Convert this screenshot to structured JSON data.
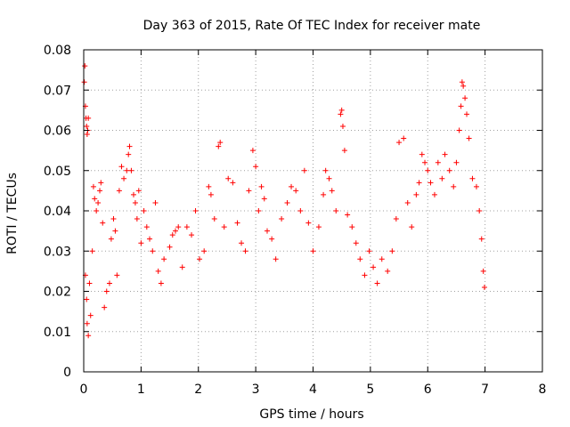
{
  "chart_data": {
    "type": "scatter",
    "title": "Day 363 of 2015, Rate Of TEC Index for receiver mate",
    "xlabel": "GPS time / hours",
    "ylabel": "ROTI / TECUs",
    "xlim": [
      0,
      8
    ],
    "ylim": [
      0,
      0.08
    ],
    "xticks": [
      0,
      1,
      2,
      3,
      4,
      5,
      6,
      7,
      8
    ],
    "xtick_labels": [
      "0",
      "1",
      "2",
      "3",
      "4",
      "5",
      "6",
      "7",
      "8"
    ],
    "yticks": [
      0,
      0.01,
      0.02,
      0.03,
      0.04,
      0.05,
      0.06,
      0.07,
      0.08
    ],
    "ytick_labels": [
      "0",
      "0.01",
      "0.02",
      "0.03",
      "0.04",
      "0.05",
      "0.06",
      "0.07",
      "0.08"
    ],
    "grid": true,
    "marker": "plus",
    "color": "#ff0000",
    "series": [
      {
        "name": "ROTI",
        "points": [
          [
            0.01,
            0.072
          ],
          [
            0.02,
            0.076
          ],
          [
            0.03,
            0.066
          ],
          [
            0.04,
            0.063
          ],
          [
            0.05,
            0.061
          ],
          [
            0.06,
            0.059
          ],
          [
            0.07,
            0.06
          ],
          [
            0.08,
            0.063
          ],
          [
            0.03,
            0.024
          ],
          [
            0.05,
            0.018
          ],
          [
            0.06,
            0.012
          ],
          [
            0.08,
            0.009
          ],
          [
            0.1,
            0.022
          ],
          [
            0.12,
            0.014
          ],
          [
            0.15,
            0.03
          ],
          [
            0.17,
            0.046
          ],
          [
            0.19,
            0.043
          ],
          [
            0.22,
            0.04
          ],
          [
            0.25,
            0.042
          ],
          [
            0.28,
            0.045
          ],
          [
            0.3,
            0.047
          ],
          [
            0.33,
            0.037
          ],
          [
            0.36,
            0.016
          ],
          [
            0.4,
            0.02
          ],
          [
            0.45,
            0.022
          ],
          [
            0.48,
            0.033
          ],
          [
            0.52,
            0.038
          ],
          [
            0.55,
            0.035
          ],
          [
            0.58,
            0.024
          ],
          [
            0.62,
            0.045
          ],
          [
            0.66,
            0.051
          ],
          [
            0.7,
            0.048
          ],
          [
            0.75,
            0.05
          ],
          [
            0.78,
            0.054
          ],
          [
            0.8,
            0.056
          ],
          [
            0.83,
            0.05
          ],
          [
            0.87,
            0.044
          ],
          [
            0.9,
            0.042
          ],
          [
            0.93,
            0.038
          ],
          [
            0.96,
            0.045
          ],
          [
            1.0,
            0.032
          ],
          [
            1.05,
            0.04
          ],
          [
            1.1,
            0.036
          ],
          [
            1.15,
            0.033
          ],
          [
            1.2,
            0.03
          ],
          [
            1.25,
            0.042
          ],
          [
            1.3,
            0.025
          ],
          [
            1.35,
            0.022
          ],
          [
            1.4,
            0.028
          ],
          [
            1.5,
            0.031
          ],
          [
            1.55,
            0.034
          ],
          [
            1.6,
            0.035
          ],
          [
            1.65,
            0.036
          ],
          [
            1.72,
            0.026
          ],
          [
            1.8,
            0.036
          ],
          [
            1.88,
            0.034
          ],
          [
            1.95,
            0.04
          ],
          [
            2.02,
            0.028
          ],
          [
            2.1,
            0.03
          ],
          [
            2.18,
            0.046
          ],
          [
            2.22,
            0.044
          ],
          [
            2.28,
            0.038
          ],
          [
            2.35,
            0.056
          ],
          [
            2.38,
            0.057
          ],
          [
            2.45,
            0.036
          ],
          [
            2.52,
            0.048
          ],
          [
            2.6,
            0.047
          ],
          [
            2.68,
            0.037
          ],
          [
            2.75,
            0.032
          ],
          [
            2.82,
            0.03
          ],
          [
            2.88,
            0.045
          ],
          [
            2.95,
            0.055
          ],
          [
            3.0,
            0.051
          ],
          [
            3.05,
            0.04
          ],
          [
            3.1,
            0.046
          ],
          [
            3.15,
            0.043
          ],
          [
            3.2,
            0.035
          ],
          [
            3.28,
            0.033
          ],
          [
            3.35,
            0.028
          ],
          [
            3.45,
            0.038
          ],
          [
            3.55,
            0.042
          ],
          [
            3.62,
            0.046
          ],
          [
            3.7,
            0.045
          ],
          [
            3.78,
            0.04
          ],
          [
            3.85,
            0.05
          ],
          [
            3.92,
            0.037
          ],
          [
            4.0,
            0.03
          ],
          [
            4.1,
            0.036
          ],
          [
            4.18,
            0.044
          ],
          [
            4.22,
            0.05
          ],
          [
            4.28,
            0.048
          ],
          [
            4.33,
            0.045
          ],
          [
            4.4,
            0.04
          ],
          [
            4.48,
            0.064
          ],
          [
            4.5,
            0.065
          ],
          [
            4.52,
            0.061
          ],
          [
            4.55,
            0.055
          ],
          [
            4.6,
            0.039
          ],
          [
            4.68,
            0.036
          ],
          [
            4.75,
            0.032
          ],
          [
            4.82,
            0.028
          ],
          [
            4.9,
            0.024
          ],
          [
            4.98,
            0.03
          ],
          [
            5.05,
            0.026
          ],
          [
            5.12,
            0.022
          ],
          [
            5.2,
            0.028
          ],
          [
            5.3,
            0.025
          ],
          [
            5.38,
            0.03
          ],
          [
            5.45,
            0.038
          ],
          [
            5.5,
            0.057
          ],
          [
            5.58,
            0.058
          ],
          [
            5.65,
            0.042
          ],
          [
            5.72,
            0.036
          ],
          [
            5.8,
            0.044
          ],
          [
            5.85,
            0.047
          ],
          [
            5.9,
            0.054
          ],
          [
            5.95,
            0.052
          ],
          [
            6.0,
            0.05
          ],
          [
            6.05,
            0.047
          ],
          [
            6.12,
            0.044
          ],
          [
            6.18,
            0.052
          ],
          [
            6.25,
            0.048
          ],
          [
            6.3,
            0.054
          ],
          [
            6.38,
            0.05
          ],
          [
            6.45,
            0.046
          ],
          [
            6.5,
            0.052
          ],
          [
            6.55,
            0.06
          ],
          [
            6.58,
            0.066
          ],
          [
            6.6,
            0.072
          ],
          [
            6.62,
            0.071
          ],
          [
            6.65,
            0.068
          ],
          [
            6.68,
            0.064
          ],
          [
            6.72,
            0.058
          ],
          [
            6.78,
            0.048
          ],
          [
            6.85,
            0.046
          ],
          [
            6.9,
            0.04
          ],
          [
            6.94,
            0.033
          ],
          [
            6.97,
            0.025
          ],
          [
            6.99,
            0.021
          ]
        ]
      }
    ]
  }
}
